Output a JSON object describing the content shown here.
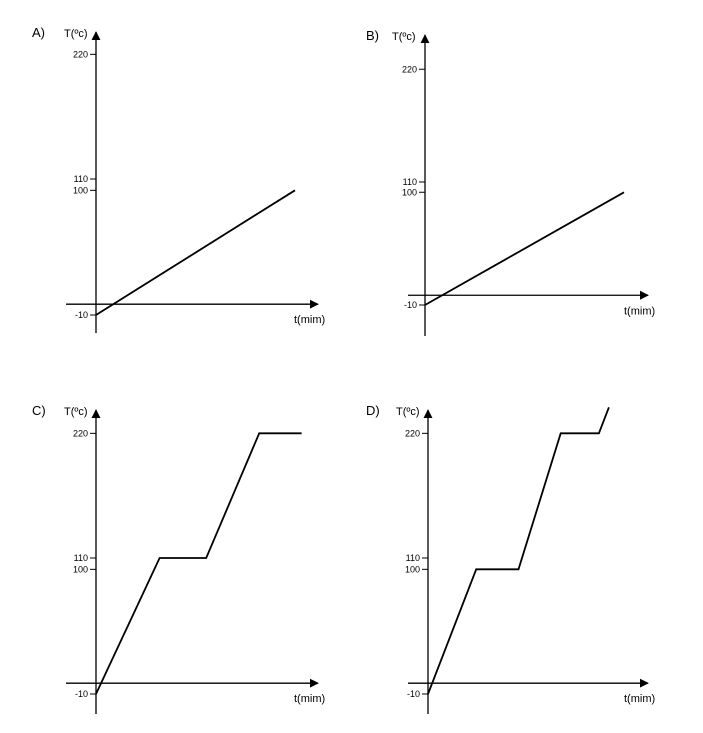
{
  "chart_data": [
    {
      "type": "line",
      "panel_label": "A)",
      "ylabel": "T(ºc)",
      "xlabel": "t(mim)",
      "y_ticks": [
        220,
        110,
        100,
        -10
      ],
      "series": [
        {
          "x": [
            0,
            10
          ],
          "y": [
            -10,
            100
          ]
        }
      ]
    },
    {
      "type": "line",
      "panel_label": "B)",
      "ylabel": "T(ºc)",
      "xlabel": "t(mim)",
      "y_ticks": [
        220,
        110,
        100,
        -10
      ],
      "series": [
        {
          "x": [
            0,
            10
          ],
          "y": [
            -10,
            100
          ]
        }
      ]
    },
    {
      "type": "line",
      "panel_label": "C)",
      "ylabel": "T(ºc)",
      "xlabel": "t(mim)",
      "y_ticks": [
        220,
        110,
        100,
        -10
      ],
      "series": [
        {
          "x": [
            0,
            3,
            5.2,
            7.7,
            9.7
          ],
          "y": [
            -10,
            110,
            110,
            220,
            220
          ]
        }
      ]
    },
    {
      "type": "line",
      "panel_label": "D)",
      "ylabel": "T(ºc)",
      "xlabel": "t(mim)",
      "y_ticks": [
        220,
        110,
        100,
        -10
      ],
      "series": [
        {
          "x": [
            0,
            2.4,
            4.5,
            6.6,
            8.5,
            9.0
          ],
          "y": [
            -10,
            100,
            100,
            220,
            220,
            243
          ]
        }
      ]
    }
  ]
}
